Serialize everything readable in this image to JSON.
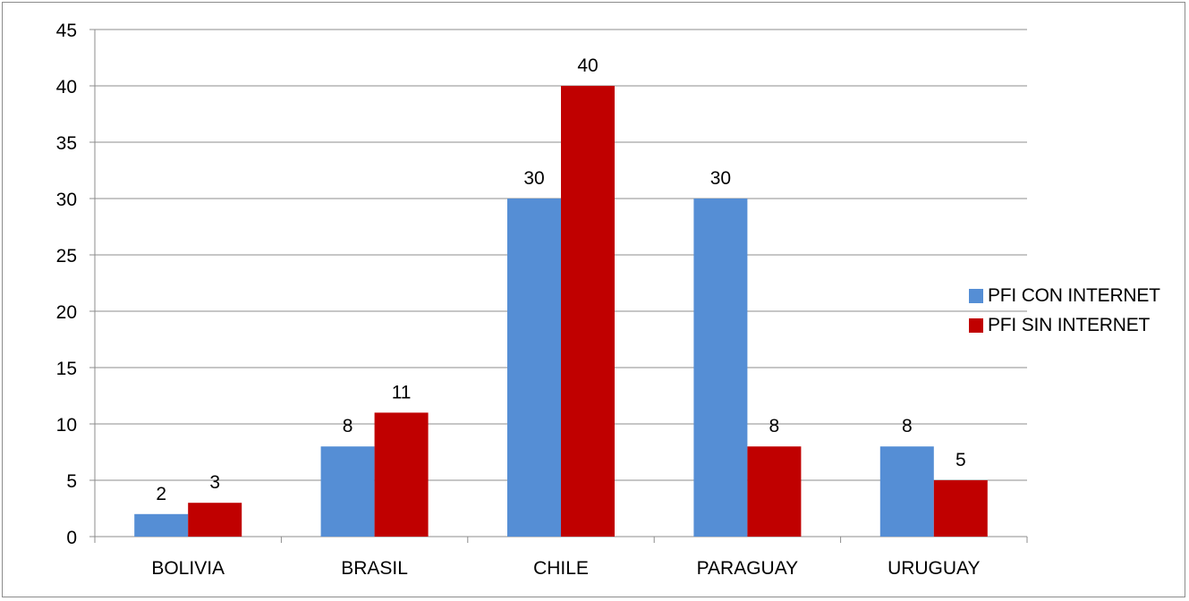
{
  "chart_data": {
    "type": "bar",
    "categories": [
      "BOLIVIA",
      "BRASIL",
      "CHILE",
      "PARAGUAY",
      "URUGUAY"
    ],
    "series": [
      {
        "name": "PFI CON INTERNET",
        "color": "#558ed5",
        "values": [
          2,
          8,
          30,
          30,
          8
        ]
      },
      {
        "name": "PFI SIN INTERNET",
        "color": "#c00000",
        "values": [
          3,
          11,
          40,
          8,
          5
        ]
      }
    ],
    "title": "",
    "xlabel": "",
    "ylabel": "",
    "ylim": [
      0,
      45
    ],
    "yticks": [
      0,
      5,
      10,
      15,
      20,
      25,
      30,
      35,
      40,
      45
    ],
    "grid": true,
    "data_labels": true,
    "legend_position": "right"
  }
}
